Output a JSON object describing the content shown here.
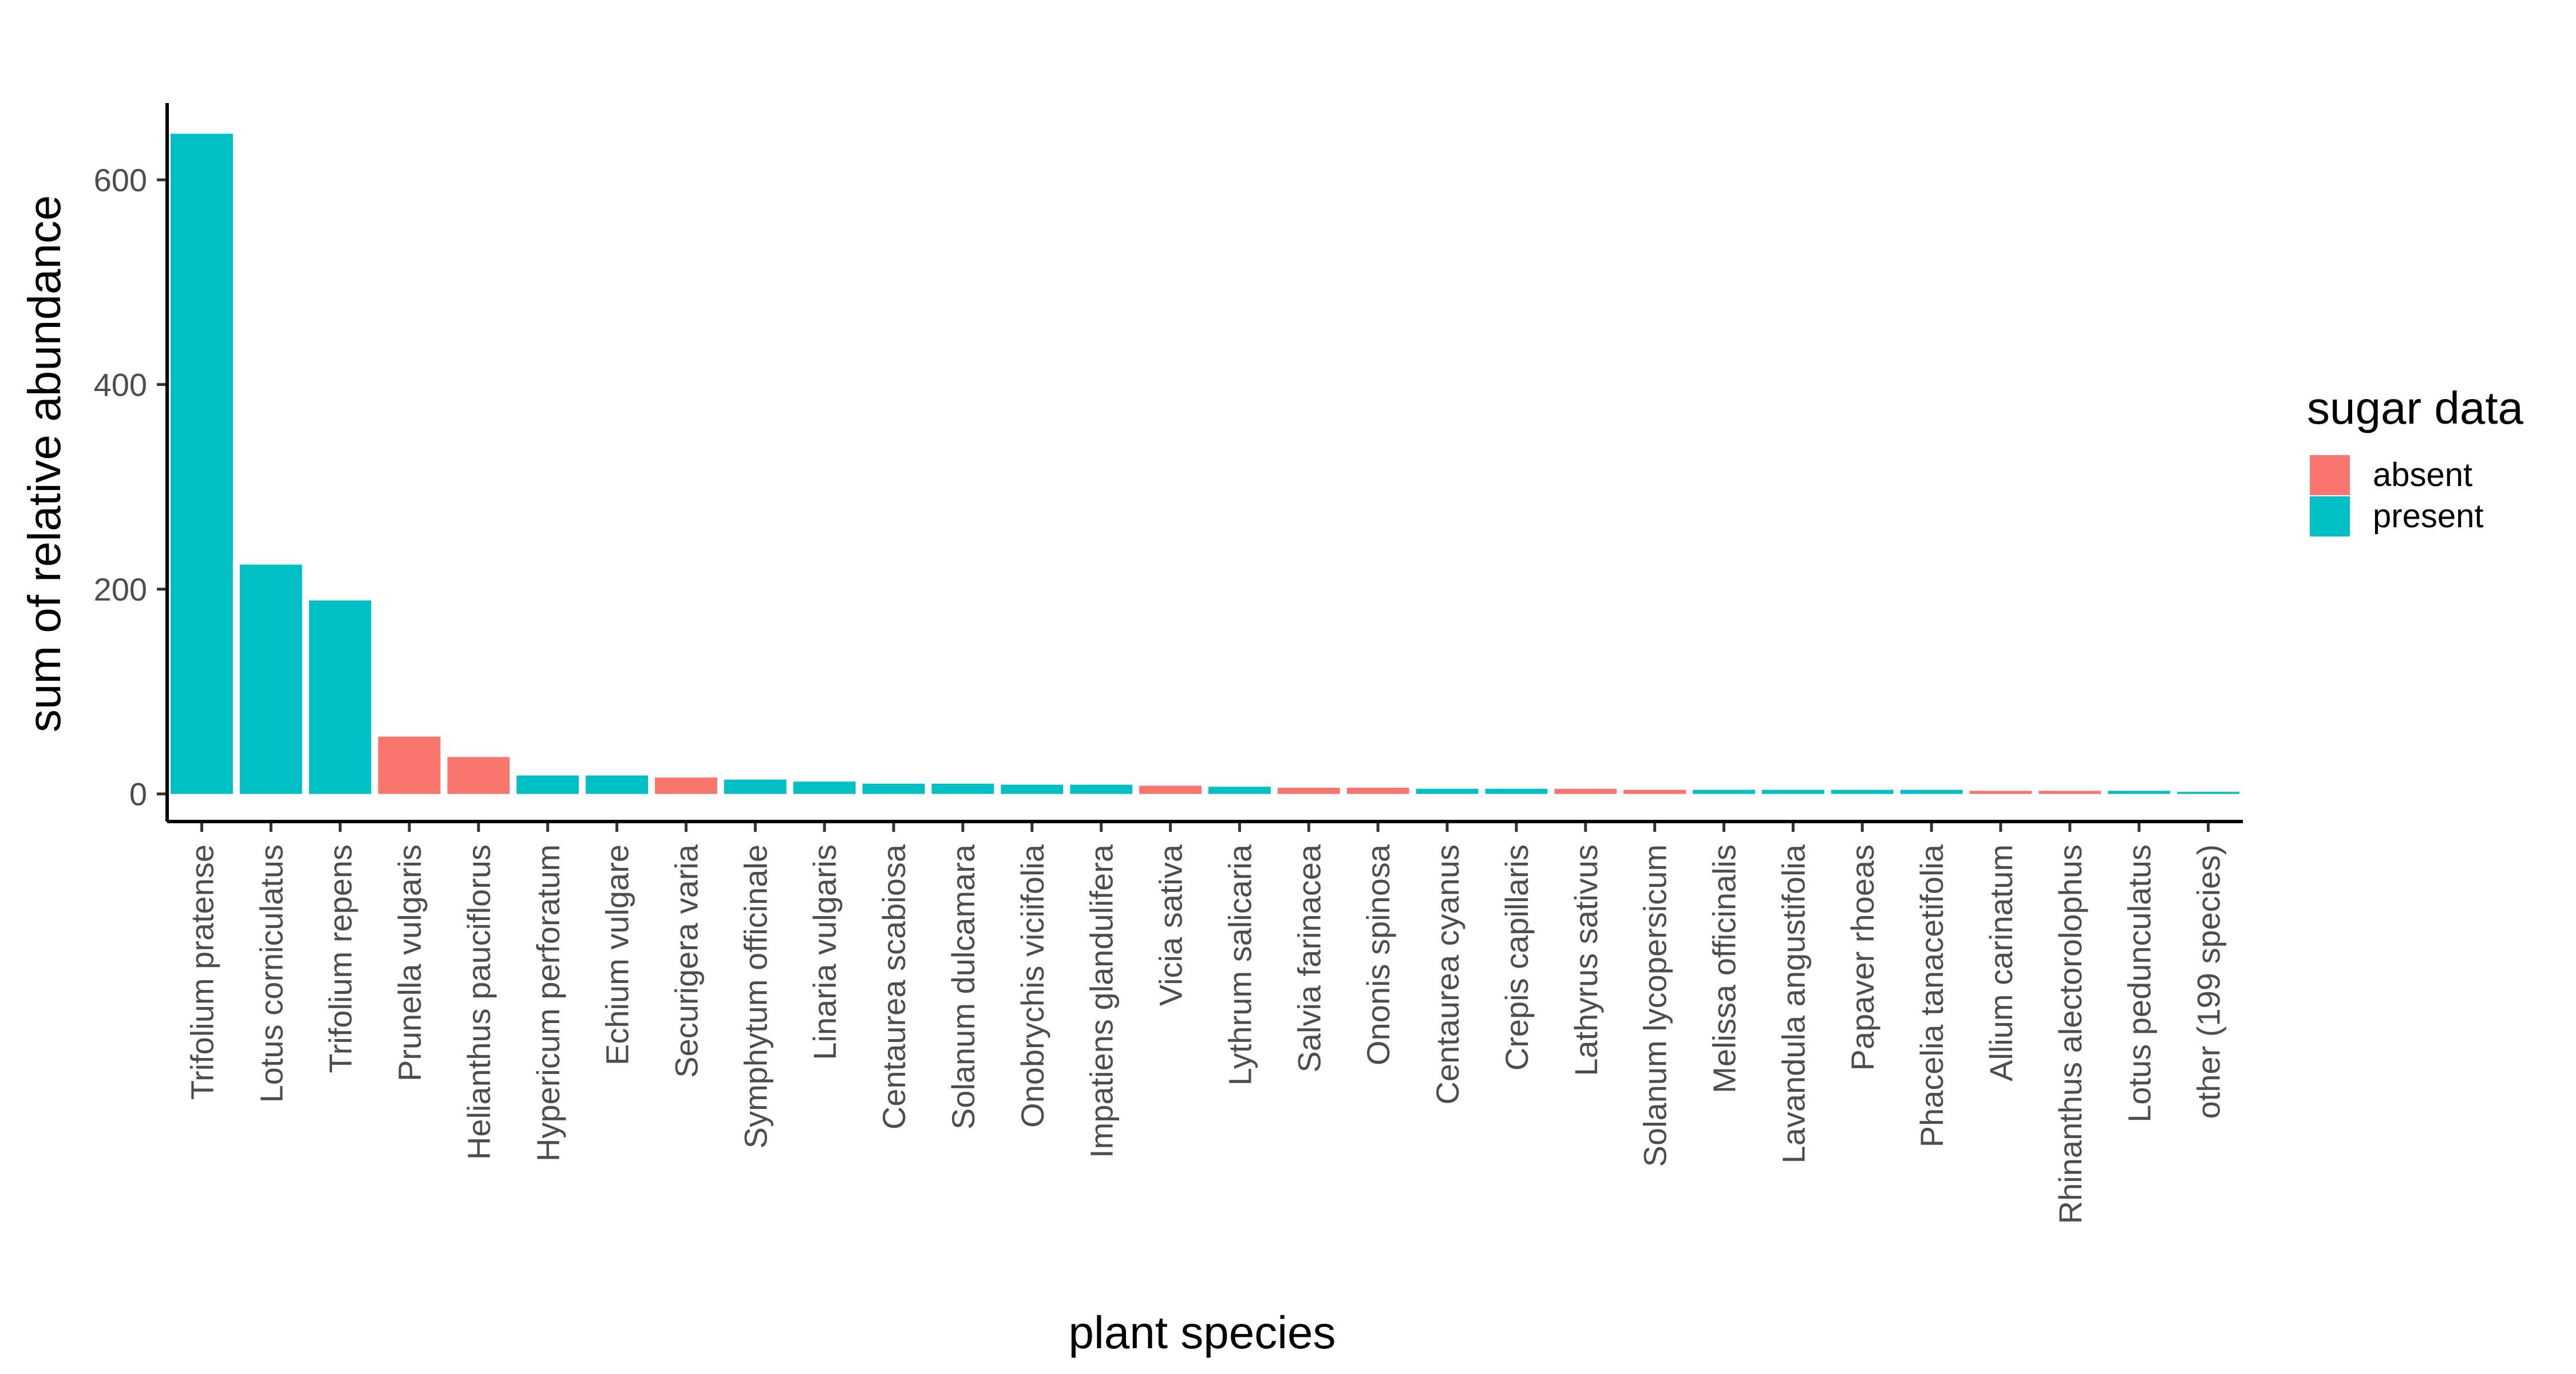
{
  "chart_data": {
    "type": "bar",
    "title": "",
    "xlabel": "plant species",
    "ylabel": "sum of relative abundance",
    "ylim": [
      -27,
      675
    ],
    "yticks": [
      0,
      200,
      400,
      600
    ],
    "grid": false,
    "legend": {
      "title": "sugar data",
      "position": "right",
      "entries": [
        {
          "label": "absent",
          "color": "#F8766D"
        },
        {
          "label": "present",
          "color": "#00BFC4"
        }
      ]
    },
    "categories": [
      "Trifolium pratense",
      "Lotus corniculatus",
      "Trifolium repens",
      "Prunella vulgaris",
      "Helianthus pauciflorus",
      "Hypericum perforatum",
      "Echium vulgare",
      "Securigera varia",
      "Symphytum officinale",
      "Linaria vulgaris",
      "Centaurea scabiosa",
      "Solanum dulcamara",
      "Onobrychis viciifolia",
      "Impatiens glandulifera",
      "Vicia sativa",
      "Lythrum salicaria",
      "Salvia farinacea",
      "Ononis spinosa",
      "Centaurea cyanus",
      "Crepis capillaris",
      "Lathyrus sativus",
      "Solanum lycopersicum",
      "Melissa officinalis",
      "Lavandula angustifolia",
      "Papaver rhoeas",
      "Phacelia tanacetifolia",
      "Allium carinatum",
      "Rhinanthus alectorolophus",
      "Lotus pedunculatus",
      "other (199 species)"
    ],
    "values": [
      645,
      224,
      189,
      56,
      36,
      18,
      18,
      16,
      14,
      12,
      10,
      10,
      9,
      9,
      8,
      7,
      6,
      6,
      5,
      5,
      5,
      4,
      4,
      4,
      4,
      4,
      3,
      3,
      3,
      2
    ],
    "sugar_data": [
      "present",
      "present",
      "present",
      "absent",
      "absent",
      "present",
      "present",
      "absent",
      "present",
      "present",
      "present",
      "present",
      "present",
      "present",
      "absent",
      "present",
      "absent",
      "absent",
      "present",
      "present",
      "absent",
      "absent",
      "present",
      "present",
      "present",
      "present",
      "absent",
      "absent",
      "present",
      "present"
    ]
  }
}
